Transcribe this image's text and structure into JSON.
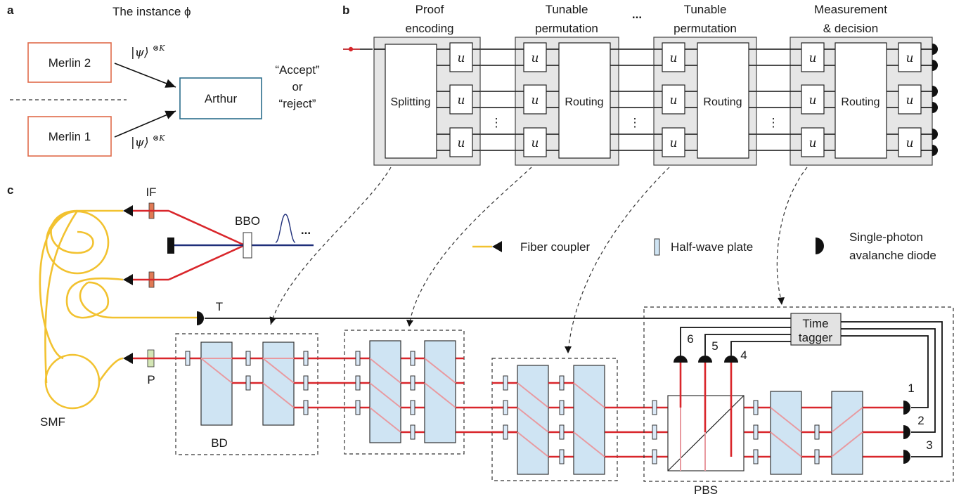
{
  "panel_a": {
    "label": "a",
    "title": "The instance ϕ",
    "merlin2": "Merlin 2",
    "merlin1": "Merlin 1",
    "arthur": "Arthur",
    "state_top": "|ψ⟩",
    "state_top_sup": "⊗K",
    "state_bottom": "|ψ⟩",
    "state_bottom_sup": "⊗K",
    "decision_line1": "“Accept”",
    "decision_line2": "or",
    "decision_line3": "“reject”"
  },
  "panel_b": {
    "label": "b",
    "stage1_line1": "Proof",
    "stage1_line2": "encoding",
    "stage2_line1": "Tunable",
    "stage2_line2": "permutation",
    "ellipsis": "...",
    "stage3_line1": "Tunable",
    "stage3_line2": "permutation",
    "stage4_line1": "Measurement",
    "stage4_line2": "& decision",
    "splitting": "Splitting",
    "routing": "Routing",
    "u": "u",
    "vdots": "⋮"
  },
  "panel_c": {
    "label": "c",
    "if": "IF",
    "bbo": "BBO",
    "pulse_dots": "...",
    "t": "T",
    "p": "P",
    "smf": "SMF",
    "bd": "BD",
    "pbs": "PBS",
    "time_tagger_line1": "Time",
    "time_tagger_line2": "tagger",
    "det_numbers": [
      "1",
      "2",
      "3",
      "4",
      "5",
      "6"
    ],
    "legend": {
      "fiber_coupler": "Fiber coupler",
      "half_wave_plate": "Half-wave plate",
      "spad_line1": "Single-photon",
      "spad_line2": "avalanche diode"
    }
  },
  "colors": {
    "beam": "#d9262b",
    "pump": "#1f2f7a",
    "fiber": "#f2c230",
    "beam_displacer": "#cfe4f3",
    "merlin_box": "#e06a4a",
    "arthur_box": "#2c6e8c"
  }
}
